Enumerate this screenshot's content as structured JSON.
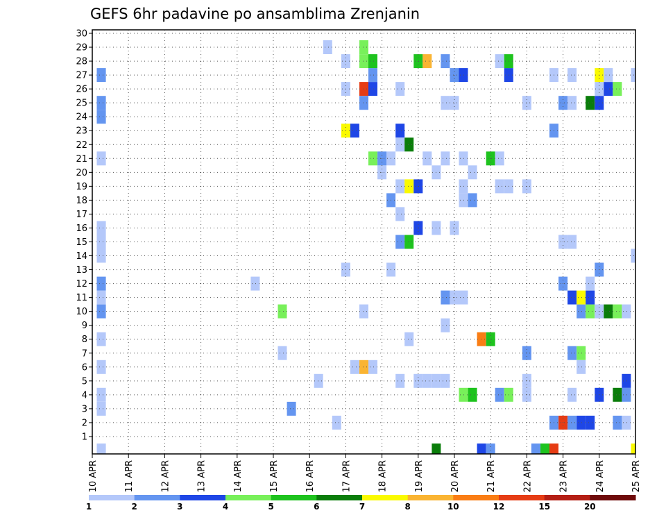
{
  "chart_data": {
    "type": "heatmap",
    "title": "GEFS 6hr padavine po ansamblima Zrenjanin",
    "xlabel": "",
    "ylabel": "",
    "x_tick_labels": [
      "10 APR",
      "11 APR",
      "12 APR",
      "13 APR",
      "14 APR",
      "15 APR",
      "16 APR",
      "17 APR",
      "18 APR",
      "19 APR",
      "20 APR",
      "21 APR",
      "22 APR",
      "23 APR",
      "24 APR",
      "25 APR"
    ],
    "x_range_days": [
      0,
      15
    ],
    "time_step_days": 0.25,
    "y_tick_labels": [
      "1",
      "2",
      "3",
      "4",
      "5",
      "6",
      "7",
      "8",
      "9",
      "10",
      "11",
      "12",
      "13",
      "14",
      "15",
      "16",
      "17",
      "18",
      "19",
      "20",
      "21",
      "22",
      "23",
      "24",
      "25",
      "26",
      "27",
      "28",
      "29",
      "30"
    ],
    "y_range": [
      0,
      30
    ],
    "grid": true,
    "colorbar": {
      "position": "bottom",
      "labels": [
        "1",
        "2",
        "3",
        "4",
        "5",
        "6",
        "7",
        "8",
        "10",
        "12",
        "15",
        "20"
      ],
      "colors": [
        "#b4c8fa",
        "#6495f0",
        "#1e46e6",
        "#78f05a",
        "#1ec31e",
        "#0a7d0a",
        "#fafa00",
        "#fab432",
        "#fa7d14",
        "#e63c14",
        "#b41e14",
        "#6e0a0a"
      ]
    },
    "cells": [
      [
        0.25,
        0,
        1
      ],
      [
        9.5,
        0,
        6
      ],
      [
        10.75,
        0,
        3
      ],
      [
        11,
        0,
        2
      ],
      [
        12.25,
        0,
        2
      ],
      [
        12.5,
        0,
        5
      ],
      [
        12.75,
        0,
        10
      ],
      [
        15,
        0,
        7
      ],
      [
        6.75,
        2,
        1
      ],
      [
        14.5,
        2,
        2
      ],
      [
        14.75,
        2,
        1
      ],
      [
        12.75,
        2,
        2
      ],
      [
        13,
        2,
        10
      ],
      [
        13.25,
        2,
        2
      ],
      [
        13.5,
        2,
        3
      ],
      [
        13.75,
        2,
        3
      ],
      [
        0.25,
        3,
        1
      ],
      [
        5.5,
        3,
        2
      ],
      [
        0.25,
        4,
        1
      ],
      [
        10.25,
        4,
        4
      ],
      [
        10.5,
        4,
        5
      ],
      [
        11.25,
        4,
        2
      ],
      [
        11.5,
        4,
        4
      ],
      [
        12,
        4,
        1
      ],
      [
        13.25,
        4,
        1
      ],
      [
        14,
        4,
        3
      ],
      [
        14.5,
        4,
        6
      ],
      [
        14.75,
        4,
        2
      ],
      [
        6.25,
        5,
        1
      ],
      [
        8.5,
        5,
        1
      ],
      [
        9,
        5,
        1
      ],
      [
        9.25,
        5,
        1
      ],
      [
        9.5,
        5,
        1
      ],
      [
        9.75,
        5,
        1
      ],
      [
        12,
        5,
        1
      ],
      [
        14.75,
        5,
        3
      ],
      [
        0.25,
        6,
        1
      ],
      [
        7.25,
        6,
        1
      ],
      [
        7.5,
        6,
        8
      ],
      [
        7.75,
        6,
        1
      ],
      [
        13.5,
        6,
        1
      ],
      [
        5.25,
        7,
        1
      ],
      [
        12,
        7,
        2
      ],
      [
        13.25,
        7,
        2
      ],
      [
        13.5,
        7,
        4
      ],
      [
        0.25,
        8,
        1
      ],
      [
        8.75,
        8,
        1
      ],
      [
        10.75,
        8,
        9
      ],
      [
        11,
        8,
        5
      ],
      [
        9.75,
        9,
        1
      ],
      [
        0.25,
        10,
        2
      ],
      [
        5.25,
        10,
        4
      ],
      [
        7.5,
        10,
        1
      ],
      [
        13.5,
        10,
        2
      ],
      [
        13.75,
        10,
        4
      ],
      [
        14,
        10,
        1
      ],
      [
        14.25,
        10,
        6
      ],
      [
        14.5,
        10,
        4
      ],
      [
        14.75,
        10,
        1
      ],
      [
        0.25,
        11,
        1
      ],
      [
        9.75,
        11,
        2
      ],
      [
        10,
        11,
        1
      ],
      [
        10.25,
        11,
        1
      ],
      [
        13.25,
        11,
        3
      ],
      [
        13.5,
        11,
        7
      ],
      [
        13.75,
        11,
        3
      ],
      [
        0.25,
        12,
        2
      ],
      [
        4.5,
        12,
        1
      ],
      [
        13,
        12,
        2
      ],
      [
        13.75,
        12,
        1
      ],
      [
        7,
        13,
        1
      ],
      [
        8.25,
        13,
        1
      ],
      [
        14,
        13,
        2
      ],
      [
        0.25,
        14,
        1
      ],
      [
        15,
        14,
        1
      ],
      [
        0.25,
        15,
        1
      ],
      [
        8.5,
        15,
        2
      ],
      [
        8.75,
        15,
        5
      ],
      [
        13,
        15,
        1
      ],
      [
        13.25,
        15,
        1
      ],
      [
        0.25,
        16,
        1
      ],
      [
        9,
        16,
        3
      ],
      [
        9.5,
        16,
        1
      ],
      [
        10,
        16,
        1
      ],
      [
        8.5,
        17,
        1
      ],
      [
        8.25,
        18,
        2
      ],
      [
        10.25,
        18,
        1
      ],
      [
        10.5,
        18,
        2
      ],
      [
        8.5,
        19,
        1
      ],
      [
        8.75,
        19,
        7
      ],
      [
        9,
        19,
        3
      ],
      [
        10.25,
        19,
        1
      ],
      [
        11.25,
        19,
        1
      ],
      [
        11.5,
        19,
        1
      ],
      [
        12,
        19,
        1
      ],
      [
        8,
        20,
        1
      ],
      [
        10.5,
        20,
        1
      ],
      [
        9.5,
        20,
        1
      ],
      [
        0.25,
        21,
        1
      ],
      [
        7.75,
        21,
        4
      ],
      [
        8.25,
        21,
        1
      ],
      [
        8,
        21,
        2
      ],
      [
        9.25,
        21,
        1
      ],
      [
        9.75,
        21,
        1
      ],
      [
        10.25,
        21,
        1
      ],
      [
        11,
        21,
        5
      ],
      [
        11.25,
        21,
        1
      ],
      [
        8.5,
        22,
        1
      ],
      [
        8.75,
        22,
        6
      ],
      [
        7,
        23,
        7
      ],
      [
        7.25,
        23,
        3
      ],
      [
        8.5,
        23,
        3
      ],
      [
        12.75,
        23,
        2
      ],
      [
        0.25,
        24,
        2
      ],
      [
        0.25,
        25,
        2
      ],
      [
        7.5,
        25,
        2
      ],
      [
        9.75,
        25,
        1
      ],
      [
        10,
        25,
        1
      ],
      [
        12,
        25,
        1
      ],
      [
        13,
        25,
        2
      ],
      [
        13.25,
        25,
        1
      ],
      [
        13.75,
        25,
        6
      ],
      [
        14,
        25,
        3
      ],
      [
        7,
        26,
        1
      ],
      [
        7.5,
        26,
        10
      ],
      [
        7.75,
        26,
        3
      ],
      [
        8.5,
        26,
        1
      ],
      [
        14,
        26,
        1
      ],
      [
        14.25,
        26,
        3
      ],
      [
        14.5,
        26,
        4
      ],
      [
        0.25,
        27,
        2
      ],
      [
        7.75,
        27,
        2
      ],
      [
        10,
        27,
        2
      ],
      [
        10.25,
        27,
        3
      ],
      [
        11.5,
        27,
        3
      ],
      [
        12.75,
        27,
        1
      ],
      [
        13.25,
        27,
        1
      ],
      [
        14,
        27,
        7
      ],
      [
        14.25,
        27,
        1
      ],
      [
        15,
        27,
        1
      ],
      [
        7,
        28,
        1
      ],
      [
        7.5,
        28,
        4
      ],
      [
        7.75,
        28,
        5
      ],
      [
        9,
        28,
        5
      ],
      [
        9.25,
        28,
        8
      ],
      [
        9.75,
        28,
        2
      ],
      [
        11.25,
        28,
        1
      ],
      [
        11.5,
        28,
        5
      ],
      [
        6.5,
        29,
        1
      ],
      [
        7.5,
        29,
        4
      ]
    ]
  }
}
